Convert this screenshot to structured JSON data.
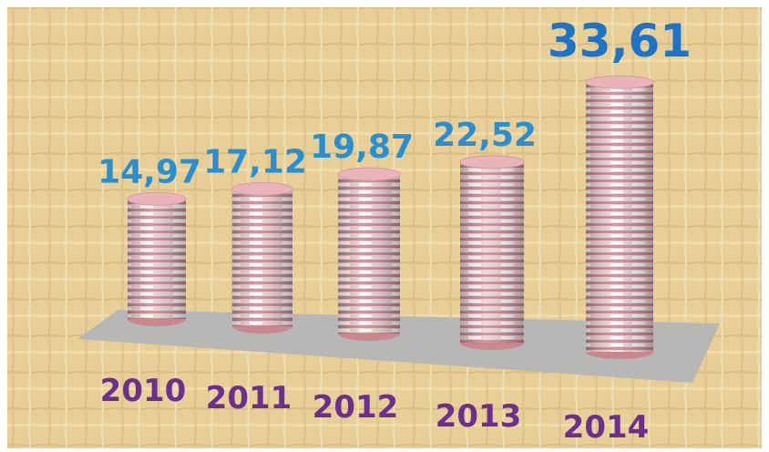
{
  "chart_data": {
    "type": "bar",
    "categories": [
      "2010",
      "2011",
      "2012",
      "2013",
      "2014"
    ],
    "values": [
      14.97,
      17.12,
      19.87,
      22.52,
      33.61
    ],
    "value_labels": [
      "14,97",
      "17,12",
      "19,87",
      "22,52",
      "33,61"
    ],
    "color": "#e9b5bb",
    "label_color": "#2a8fd0",
    "category_color": "#6b2f8e"
  }
}
